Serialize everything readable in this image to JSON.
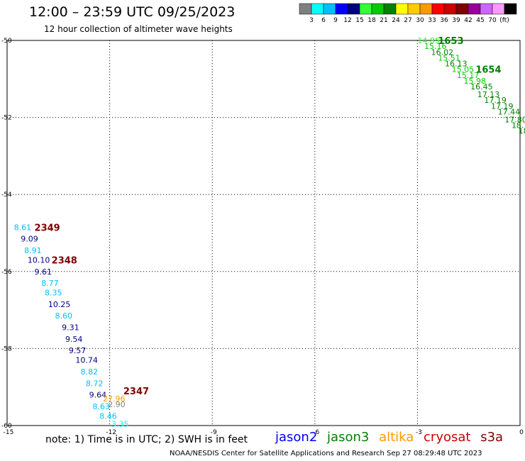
{
  "header": {
    "title": "12:00 – 23:59 UTC 09/25/2023",
    "subtitle": "12 hour collection of altimeter wave heights"
  },
  "legend": {
    "colors": [
      "#808080",
      "#00ffff",
      "#00bfff",
      "#0000ff",
      "#000080",
      "#33ff33",
      "#00cc00",
      "#008000",
      "#ffff00",
      "#ffcc00",
      "#ff9900",
      "#ff0000",
      "#cc0000",
      "#800000",
      "#990099",
      "#cc66ff",
      "#ff99ff",
      "#000000"
    ],
    "labels": [
      "3",
      "6",
      "9",
      "12",
      "15",
      "18",
      "21",
      "24",
      "27",
      "30",
      "33",
      "36",
      "39",
      "42",
      "45",
      "70",
      "(ft)"
    ]
  },
  "note": "note:  1) Time is in UTC; 2) SWH is in feet",
  "satellites": [
    {
      "name": "jason2",
      "color": "#0000ff"
    },
    {
      "name": "jason3",
      "color": "#008000"
    },
    {
      "name": "altika",
      "color": "#ff9900"
    },
    {
      "name": "cryosat",
      "color": "#cc0000"
    },
    {
      "name": "s3a",
      "color": "#800000"
    }
  ],
  "footer": "NOAA/NESDIS Center for Satellite Applications and Research    Sep 27 08:29:48 UTC 2023",
  "chart_data": {
    "type": "scatter",
    "title": "12:00 – 23:59 UTC 09/25/2023",
    "xlim": [
      -15,
      0
    ],
    "ylim": [
      -60,
      -50
    ],
    "xticks": [
      -15,
      -12,
      -9,
      -6,
      -3,
      0
    ],
    "yticks": [
      -50,
      -52,
      -54,
      -56,
      -58,
      -60
    ],
    "xtick_labels": [
      "-15",
      "-12",
      "-9",
      "-6",
      "-3",
      "0"
    ],
    "ytick_labels": [
      "-50",
      "-52",
      "-54",
      "-56",
      "-58",
      "-60"
    ],
    "grid": true,
    "time_labels": [
      {
        "text": "1653",
        "x": -2.4,
        "y": -50.0,
        "color": "#008000"
      },
      {
        "text": "1654",
        "x": -1.3,
        "y": -50.75,
        "color": "#008000"
      },
      {
        "text": "2349",
        "x": -14.2,
        "y": -54.85,
        "color": "#800000"
      },
      {
        "text": "2348",
        "x": -13.7,
        "y": -55.7,
        "color": "#800000"
      },
      {
        "text": "2347",
        "x": -11.6,
        "y": -59.1,
        "color": "#800000"
      }
    ],
    "series": [
      {
        "name": "jason3",
        "points": [
          {
            "x": -3.0,
            "y": -50.0,
            "label": "14.85",
            "color": "#33ff33"
          },
          {
            "x": -2.8,
            "y": -50.15,
            "label": "15.16",
            "color": "#00cc00"
          },
          {
            "x": -2.6,
            "y": -50.3,
            "label": "16.02",
            "color": "#008000"
          },
          {
            "x": -2.4,
            "y": -50.45,
            "label": "15.51",
            "color": "#00cc00"
          },
          {
            "x": -2.2,
            "y": -50.6,
            "label": "16.13",
            "color": "#008000"
          },
          {
            "x": -2.0,
            "y": -50.75,
            "label": "15.05",
            "color": "#00cc00"
          },
          {
            "x": -1.85,
            "y": -50.9,
            "label": "15.17",
            "color": "#00cc00"
          },
          {
            "x": -1.65,
            "y": -51.05,
            "label": "15.98",
            "color": "#00cc00"
          },
          {
            "x": -1.45,
            "y": -51.2,
            "label": "16.45",
            "color": "#008000"
          },
          {
            "x": -1.25,
            "y": -51.4,
            "label": "17.13",
            "color": "#008000"
          },
          {
            "x": -1.05,
            "y": -51.55,
            "label": "17.19",
            "color": "#008000"
          },
          {
            "x": -0.85,
            "y": -51.7,
            "label": "17.19",
            "color": "#008000"
          },
          {
            "x": -0.65,
            "y": -51.85,
            "label": "17.44",
            "color": "#008000"
          },
          {
            "x": -0.45,
            "y": -52.05,
            "label": "17.80",
            "color": "#008000"
          },
          {
            "x": -0.25,
            "y": -52.2,
            "label": "18.11",
            "color": "#008000"
          },
          {
            "x": -0.05,
            "y": -52.35,
            "label": "18.11",
            "color": "#008000"
          }
        ]
      },
      {
        "name": "pass-2348",
        "points": [
          {
            "x": -14.8,
            "y": -54.85,
            "label": "8.61",
            "color": "#00bfff"
          },
          {
            "x": -14.6,
            "y": -55.15,
            "label": "9.09",
            "color": "#000080"
          },
          {
            "x": -14.5,
            "y": -55.45,
            "label": "8.91",
            "color": "#00bfff"
          },
          {
            "x": -14.4,
            "y": -55.7,
            "label": "10.10",
            "color": "#000080"
          },
          {
            "x": -14.2,
            "y": -56.0,
            "label": "9.61",
            "color": "#000080"
          },
          {
            "x": -14.0,
            "y": -56.3,
            "label": "8.77",
            "color": "#00bfff"
          },
          {
            "x": -13.9,
            "y": -56.55,
            "label": "8.35",
            "color": "#00bfff"
          },
          {
            "x": -13.8,
            "y": -56.85,
            "label": "10.25",
            "color": "#000080"
          },
          {
            "x": -13.6,
            "y": -57.15,
            "label": "8.60",
            "color": "#00bfff"
          },
          {
            "x": -13.4,
            "y": -57.45,
            "label": "9.31",
            "color": "#000080"
          },
          {
            "x": -13.3,
            "y": -57.75,
            "label": "9.54",
            "color": "#000080"
          },
          {
            "x": -13.2,
            "y": -58.05,
            "label": "9.57",
            "color": "#000080"
          },
          {
            "x": -13.0,
            "y": -58.3,
            "label": "10.74",
            "color": "#000080"
          },
          {
            "x": -12.85,
            "y": -58.6,
            "label": "8.82",
            "color": "#00bfff"
          },
          {
            "x": -12.7,
            "y": -58.9,
            "label": "8.72",
            "color": "#00bfff"
          },
          {
            "x": -12.6,
            "y": -59.2,
            "label": "9.64",
            "color": "#000080"
          },
          {
            "x": -12.5,
            "y": -59.5,
            "label": "8.63",
            "color": "#00bfff"
          },
          {
            "x": -12.3,
            "y": -59.75,
            "label": "8.46",
            "color": "#00bfff"
          },
          {
            "x": -12.2,
            "y": -59.3,
            "label": "27.96",
            "color": "#ff9900"
          },
          {
            "x": -12.05,
            "y": -59.45,
            "label": "2.90",
            "color": "#808080"
          },
          {
            "x": -11.95,
            "y": -59.95,
            "label": "3.35",
            "color": "#00ffff"
          }
        ]
      }
    ]
  }
}
